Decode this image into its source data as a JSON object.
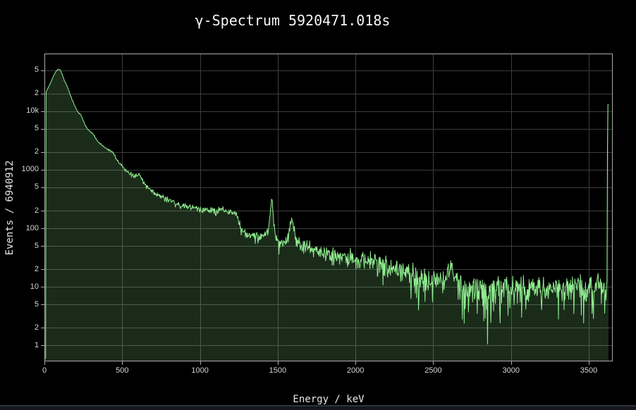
{
  "chart": {
    "title": "γ-Spectrum 5920471.018s",
    "x_title": "Energy / keV",
    "y_title": "Events / 6940912",
    "colors": {
      "background": "#000000",
      "line": "#90ee90",
      "fill": "rgba(144,238,144,0.18)",
      "grid": "#3d3d3d",
      "axis_line": "#a9a9a9",
      "tick_label": "#d6d6d6",
      "title_text": "#f5f5f5",
      "bottom_bar": "#14171d",
      "bottom_bar_edge": "#2c3340"
    },
    "x_ticks": [
      {
        "v": 0,
        "label": "0"
      },
      {
        "v": 500,
        "label": "500"
      },
      {
        "v": 1000,
        "label": "1000"
      },
      {
        "v": 1500,
        "label": "1500"
      },
      {
        "v": 2000,
        "label": "2000"
      },
      {
        "v": 2500,
        "label": "2500"
      },
      {
        "v": 3000,
        "label": "3000"
      },
      {
        "v": 3500,
        "label": "3500"
      }
    ],
    "y_ticks": [
      {
        "v": 1,
        "label": "1"
      },
      {
        "v": 2,
        "label": "2"
      },
      {
        "v": 5,
        "label": "5"
      },
      {
        "v": 10,
        "label": "10"
      },
      {
        "v": 20,
        "label": "2"
      },
      {
        "v": 50,
        "label": "5"
      },
      {
        "v": 100,
        "label": "100"
      },
      {
        "v": 200,
        "label": "2"
      },
      {
        "v": 500,
        "label": "5"
      },
      {
        "v": 1000,
        "label": "1000"
      },
      {
        "v": 2000,
        "label": "2"
      },
      {
        "v": 5000,
        "label": "5"
      },
      {
        "v": 10000,
        "label": "10k"
      },
      {
        "v": 20000,
        "label": "2"
      },
      {
        "v": 50000,
        "label": "5"
      }
    ]
  },
  "chart_data": {
    "type": "area",
    "title": "γ-Spectrum 5920471.018s",
    "xlabel": "Energy / keV",
    "ylabel": "Events / 6940912",
    "y_scale": "log",
    "grid": true,
    "legend": "none",
    "x_range_kev": [
      0,
      3654
    ],
    "y_range": [
      0.53,
      97000
    ],
    "visible_peaks_kev": [
      95,
      609,
      1461,
      1590,
      2615,
      3620
    ],
    "bin_step_kev": 3,
    "envelope_points": [
      [
        8,
        0.55
      ],
      [
        10,
        21000
      ],
      [
        18,
        23500
      ],
      [
        30,
        27000
      ],
      [
        45,
        33000
      ],
      [
        60,
        41000
      ],
      [
        72,
        47000
      ],
      [
        82,
        51000
      ],
      [
        90,
        52500
      ],
      [
        98,
        51500
      ],
      [
        108,
        47000
      ],
      [
        118,
        40000
      ],
      [
        128,
        33500
      ],
      [
        138,
        29500
      ],
      [
        148,
        26000
      ],
      [
        158,
        22000
      ],
      [
        168,
        18500
      ],
      [
        178,
        15800
      ],
      [
        190,
        13200
      ],
      [
        202,
        11400
      ],
      [
        212,
        10000
      ],
      [
        222,
        9200
      ],
      [
        232,
        8900
      ],
      [
        240,
        8000
      ],
      [
        252,
        6700
      ],
      [
        264,
        5700
      ],
      [
        276,
        5100
      ],
      [
        288,
        4650
      ],
      [
        300,
        4300
      ],
      [
        308,
        4250
      ],
      [
        318,
        3900
      ],
      [
        332,
        3400
      ],
      [
        348,
        2950
      ],
      [
        365,
        2700
      ],
      [
        382,
        2480
      ],
      [
        400,
        2260
      ],
      [
        415,
        2160
      ],
      [
        428,
        2120
      ],
      [
        438,
        1950
      ],
      [
        452,
        1700
      ],
      [
        468,
        1480
      ],
      [
        484,
        1280
      ],
      [
        500,
        1150
      ],
      [
        518,
        1030
      ],
      [
        535,
        930
      ],
      [
        552,
        855
      ],
      [
        568,
        800
      ],
      [
        582,
        760
      ],
      [
        596,
        810
      ],
      [
        610,
        855
      ],
      [
        622,
        740
      ],
      [
        638,
        610
      ],
      [
        655,
        540
      ],
      [
        672,
        480
      ],
      [
        692,
        435
      ],
      [
        715,
        390
      ],
      [
        740,
        360
      ],
      [
        768,
        330
      ],
      [
        800,
        302
      ],
      [
        835,
        275
      ],
      [
        870,
        252
      ],
      [
        905,
        238
      ],
      [
        940,
        228
      ],
      [
        975,
        218
      ],
      [
        1010,
        210
      ],
      [
        1050,
        204
      ],
      [
        1090,
        199
      ],
      [
        1115,
        202
      ],
      [
        1135,
        210
      ],
      [
        1158,
        196
      ],
      [
        1185,
        188
      ],
      [
        1215,
        180
      ],
      [
        1238,
        168
      ],
      [
        1252,
        128
      ],
      [
        1266,
        100
      ],
      [
        1282,
        86
      ],
      [
        1305,
        78
      ],
      [
        1335,
        74
      ],
      [
        1365,
        70
      ],
      [
        1395,
        71
      ],
      [
        1420,
        78
      ],
      [
        1440,
        98
      ],
      [
        1450,
        160
      ],
      [
        1458,
        290
      ],
      [
        1462,
        312
      ],
      [
        1468,
        230
      ],
      [
        1476,
        110
      ],
      [
        1488,
        70
      ],
      [
        1502,
        58
      ],
      [
        1520,
        53
      ],
      [
        1540,
        55
      ],
      [
        1558,
        64
      ],
      [
        1574,
        85
      ],
      [
        1586,
        125
      ],
      [
        1594,
        132
      ],
      [
        1604,
        100
      ],
      [
        1616,
        66
      ],
      [
        1632,
        52
      ],
      [
        1655,
        47
      ],
      [
        1685,
        44
      ],
      [
        1720,
        43
      ],
      [
        1760,
        41
      ],
      [
        1810,
        38
      ],
      [
        1865,
        35
      ],
      [
        1925,
        33
      ],
      [
        1990,
        31
      ],
      [
        2060,
        28
      ],
      [
        2130,
        26
      ],
      [
        2200,
        23
      ],
      [
        2270,
        20
      ],
      [
        2330,
        17
      ],
      [
        2390,
        14
      ],
      [
        2450,
        12.5
      ],
      [
        2520,
        12
      ],
      [
        2570,
        13.5
      ],
      [
        2600,
        19
      ],
      [
        2616,
        25
      ],
      [
        2632,
        16
      ],
      [
        2660,
        11.5
      ],
      [
        2720,
        10
      ],
      [
        2790,
        9.5
      ],
      [
        2870,
        9.2
      ],
      [
        2960,
        9.5
      ],
      [
        3060,
        9.4
      ],
      [
        3160,
        9.5
      ],
      [
        3260,
        9.4
      ],
      [
        3360,
        9.6
      ],
      [
        3460,
        9.8
      ],
      [
        3560,
        10
      ],
      [
        3612,
        10.5
      ],
      [
        3617,
        11
      ],
      [
        3621,
        13000
      ],
      [
        3627,
        13000
      ]
    ],
    "dropouts": [
      [
        2848,
        1.05
      ],
      [
        2688,
        2.8
      ],
      [
        2930,
        2.4
      ],
      [
        3068,
        3.0
      ],
      [
        3305,
        2.8
      ],
      [
        2404,
        4.0
      ],
      [
        3522,
        3.5
      ]
    ]
  }
}
